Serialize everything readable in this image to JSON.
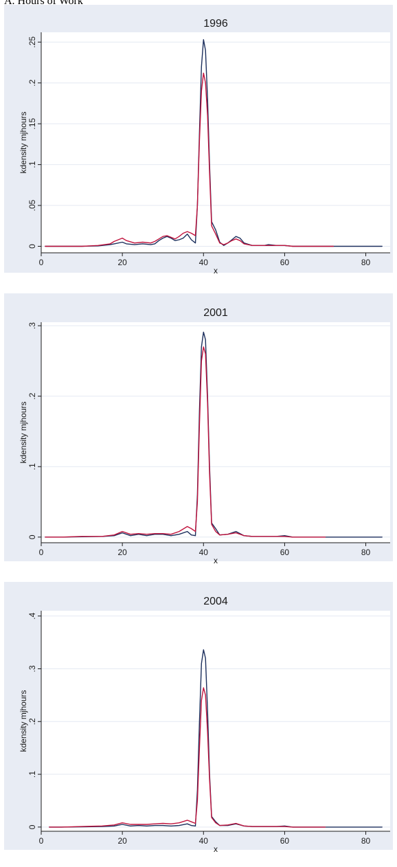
{
  "page": {
    "heading": "A. Hours of Work"
  },
  "colors": {
    "panel_bg": "#e8ecf4",
    "plot_bg": "#ffffff",
    "grid": "#e4e9f2",
    "axis": "#1a1a1a",
    "series_1": "#1b2e5c",
    "series_2": "#c0123c"
  },
  "chart_data": [
    {
      "type": "line",
      "title": "1996",
      "xlabel": "x",
      "ylabel": "kdensity mjhours",
      "xlim": [
        0,
        86
      ],
      "ylim": [
        -0.008,
        0.262
      ],
      "xticks": [
        0,
        20,
        40,
        60,
        80
      ],
      "xtick_labels": [
        "0",
        "20",
        "40",
        "60",
        "80"
      ],
      "yticks": [
        0,
        0.05,
        0.1,
        0.15,
        0.2,
        0.25
      ],
      "ytick_labels": [
        "0",
        ".05",
        ".1",
        ".15",
        ".2",
        ".25"
      ],
      "grid": true,
      "series": [
        {
          "color": "#1b2e5c",
          "x": [
            1,
            5,
            10,
            14,
            17,
            18,
            20,
            21,
            23,
            25,
            27,
            28,
            29,
            30,
            31,
            32,
            33,
            34,
            35,
            36,
            37,
            38,
            38.5,
            39,
            39.5,
            40,
            40.5,
            41,
            41.5,
            42,
            43,
            44,
            45,
            46,
            47,
            48,
            49,
            50,
            52,
            55,
            56,
            58,
            60,
            62,
            65,
            70,
            75,
            80,
            84
          ],
          "y": [
            0.0,
            0.0,
            0.0,
            0.0005,
            0.002,
            0.003,
            0.005,
            0.003,
            0.002,
            0.003,
            0.002,
            0.003,
            0.007,
            0.01,
            0.012,
            0.01,
            0.007,
            0.008,
            0.01,
            0.015,
            0.008,
            0.004,
            0.05,
            0.14,
            0.22,
            0.253,
            0.24,
            0.18,
            0.1,
            0.03,
            0.02,
            0.005,
            0.001,
            0.004,
            0.008,
            0.012,
            0.01,
            0.004,
            0.001,
            0.001,
            0.002,
            0.001,
            0.001,
            0.0,
            0.0,
            0.0,
            0.0,
            0.0,
            0.0
          ]
        },
        {
          "color": "#c0123c",
          "x": [
            1,
            5,
            10,
            14,
            17,
            18,
            20,
            21,
            23,
            25,
            27,
            28,
            29,
            30,
            31,
            32,
            33,
            34,
            35,
            36,
            37,
            38,
            38.5,
            39,
            39.5,
            40,
            40.5,
            41,
            41.5,
            42,
            43,
            44,
            45,
            46,
            47,
            48,
            49,
            50,
            52,
            55,
            56,
            58,
            60,
            62,
            65,
            70,
            72
          ],
          "y": [
            0.0,
            0.0,
            0.0,
            0.001,
            0.003,
            0.006,
            0.01,
            0.007,
            0.004,
            0.005,
            0.004,
            0.006,
            0.009,
            0.012,
            0.013,
            0.011,
            0.009,
            0.012,
            0.016,
            0.018,
            0.016,
            0.013,
            0.05,
            0.13,
            0.19,
            0.212,
            0.2,
            0.16,
            0.09,
            0.025,
            0.015,
            0.004,
            0.002,
            0.004,
            0.007,
            0.009,
            0.007,
            0.003,
            0.001,
            0.001,
            0.001,
            0.001,
            0.001,
            0.0,
            0.0,
            0.0,
            0.0
          ]
        }
      ]
    },
    {
      "type": "line",
      "title": "2001",
      "xlabel": "x",
      "ylabel": "kdensity mjhours",
      "xlim": [
        0,
        86
      ],
      "ylim": [
        -0.008,
        0.305
      ],
      "xticks": [
        0,
        20,
        40,
        60,
        80
      ],
      "xtick_labels": [
        "0",
        "20",
        "40",
        "60",
        "80"
      ],
      "yticks": [
        0,
        0.1,
        0.2,
        0.3
      ],
      "ytick_labels": [
        "0",
        ".1",
        ".2",
        ".3"
      ],
      "grid": true,
      "series": [
        {
          "color": "#1b2e5c",
          "x": [
            1,
            5,
            10,
            15,
            18,
            20,
            22,
            24,
            26,
            28,
            30,
            32,
            34,
            36,
            37,
            38,
            38.5,
            39,
            39.5,
            40,
            40.5,
            41,
            41.5,
            42,
            43,
            44,
            46,
            48,
            50,
            52,
            55,
            58,
            60,
            62,
            65,
            70,
            75,
            80,
            84
          ],
          "y": [
            0.0,
            0.0,
            0.0005,
            0.001,
            0.002,
            0.006,
            0.002,
            0.004,
            0.002,
            0.004,
            0.004,
            0.002,
            0.004,
            0.008,
            0.003,
            0.002,
            0.06,
            0.18,
            0.27,
            0.291,
            0.28,
            0.2,
            0.1,
            0.02,
            0.012,
            0.003,
            0.004,
            0.008,
            0.002,
            0.001,
            0.001,
            0.001,
            0.002,
            0.0,
            0.0,
            0.0,
            0.0,
            0.0,
            0.0
          ]
        },
        {
          "color": "#c0123c",
          "x": [
            1,
            5,
            10,
            15,
            18,
            20,
            22,
            24,
            26,
            28,
            30,
            32,
            34,
            36,
            37,
            38,
            38.5,
            39,
            39.5,
            40,
            40.5,
            41,
            41.5,
            42,
            43,
            44,
            46,
            48,
            50,
            52,
            55,
            58,
            60,
            62,
            65,
            70
          ],
          "y": [
            0.0,
            0.0,
            0.001,
            0.001,
            0.003,
            0.008,
            0.004,
            0.005,
            0.004,
            0.005,
            0.005,
            0.004,
            0.008,
            0.015,
            0.012,
            0.008,
            0.05,
            0.16,
            0.25,
            0.27,
            0.26,
            0.19,
            0.09,
            0.018,
            0.008,
            0.003,
            0.004,
            0.006,
            0.002,
            0.001,
            0.001,
            0.001,
            0.001,
            0.0,
            0.0,
            0.0
          ]
        }
      ]
    },
    {
      "type": "line",
      "title": "2004",
      "xlabel": "x",
      "ylabel": "kdensity mjhours",
      "xlim": [
        0,
        86
      ],
      "ylim": [
        -0.008,
        0.41
      ],
      "xticks": [
        0,
        20,
        40,
        60,
        80
      ],
      "xtick_labels": [
        "0",
        "20",
        "40",
        "60",
        "80"
      ],
      "yticks": [
        0,
        0.1,
        0.2,
        0.3,
        0.4
      ],
      "ytick_labels": [
        "0",
        ".1",
        ".2",
        ".3",
        ".4"
      ],
      "grid": true,
      "series": [
        {
          "color": "#1b2e5c",
          "x": [
            2,
            5,
            10,
            15,
            18,
            20,
            22,
            24,
            26,
            28,
            30,
            32,
            34,
            36,
            37,
            38,
            38.5,
            39,
            39.5,
            40,
            40.5,
            41,
            41.5,
            42,
            43,
            44,
            46,
            48,
            50,
            52,
            55,
            58,
            60,
            62,
            65,
            70,
            75,
            80,
            84
          ],
          "y": [
            0.0,
            0.0,
            0.0005,
            0.001,
            0.002,
            0.005,
            0.002,
            0.003,
            0.002,
            0.003,
            0.003,
            0.002,
            0.003,
            0.006,
            0.003,
            0.002,
            0.07,
            0.2,
            0.31,
            0.336,
            0.32,
            0.22,
            0.1,
            0.02,
            0.01,
            0.003,
            0.003,
            0.006,
            0.002,
            0.001,
            0.001,
            0.001,
            0.002,
            0.0,
            0.0,
            0.0,
            0.0,
            0.0,
            0.0
          ]
        },
        {
          "color": "#c0123c",
          "x": [
            2,
            5,
            10,
            15,
            18,
            20,
            22,
            24,
            26,
            28,
            30,
            32,
            34,
            36,
            37,
            38,
            38.5,
            39,
            39.5,
            40,
            40.5,
            41,
            41.5,
            42,
            43,
            44,
            46,
            48,
            50,
            52,
            55,
            58,
            60,
            62,
            65,
            70
          ],
          "y": [
            0.0,
            0.0,
            0.001,
            0.002,
            0.004,
            0.008,
            0.005,
            0.005,
            0.005,
            0.006,
            0.007,
            0.006,
            0.008,
            0.013,
            0.01,
            0.007,
            0.05,
            0.15,
            0.24,
            0.264,
            0.25,
            0.18,
            0.09,
            0.018,
            0.008,
            0.003,
            0.004,
            0.007,
            0.002,
            0.001,
            0.001,
            0.001,
            0.001,
            0.0,
            0.0,
            0.0
          ]
        }
      ]
    }
  ]
}
